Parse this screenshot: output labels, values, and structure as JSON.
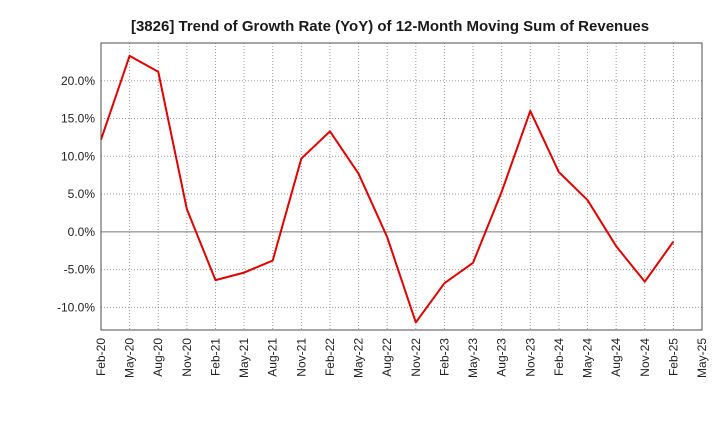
{
  "chart_data": {
    "type": "line",
    "title": "[3826]  Trend of Growth Rate (YoY) of 12-Month Moving Sum of Revenues",
    "xlabel": "",
    "ylabel": "",
    "y_unit": "%",
    "ylim": [
      -13,
      25
    ],
    "y_ticks": [
      -10,
      -5,
      0,
      5,
      10,
      15,
      20
    ],
    "y_tick_labels": [
      "-10.0%",
      "-5.0%",
      "0.0%",
      "5.0%",
      "10.0%",
      "15.0%",
      "20.0%"
    ],
    "x_tick_labels": [
      "Feb-20",
      "May-20",
      "Aug-20",
      "Nov-20",
      "Feb-21",
      "May-21",
      "Aug-21",
      "Nov-21",
      "Feb-22",
      "May-22",
      "Aug-22",
      "Nov-22",
      "Feb-23",
      "May-23",
      "Aug-23",
      "Nov-23",
      "Feb-24",
      "May-24",
      "Aug-24",
      "Nov-24",
      "Feb-25",
      "May-25"
    ],
    "grid": true,
    "line_color": "#e00000",
    "series": [
      {
        "x": [
          "Feb-20",
          "May-20",
          "Aug-20",
          "Nov-20",
          "Feb-21",
          "May-21",
          "Aug-21",
          "Nov-21",
          "Feb-22",
          "May-22",
          "Aug-22",
          "Nov-22",
          "Feb-23",
          "May-23",
          "Aug-23",
          "Nov-23",
          "Feb-24",
          "May-24",
          "Aug-24",
          "Nov-24",
          "Feb-25"
        ],
        "values": [
          12.2,
          23.3,
          21.2,
          3.0,
          -6.4,
          -5.4,
          -3.8,
          9.7,
          13.3,
          7.7,
          -0.7,
          -12.0,
          -6.8,
          -4.1,
          5.3,
          16.0,
          7.9,
          4.2,
          -1.9,
          -6.6,
          -1.3
        ]
      }
    ]
  }
}
